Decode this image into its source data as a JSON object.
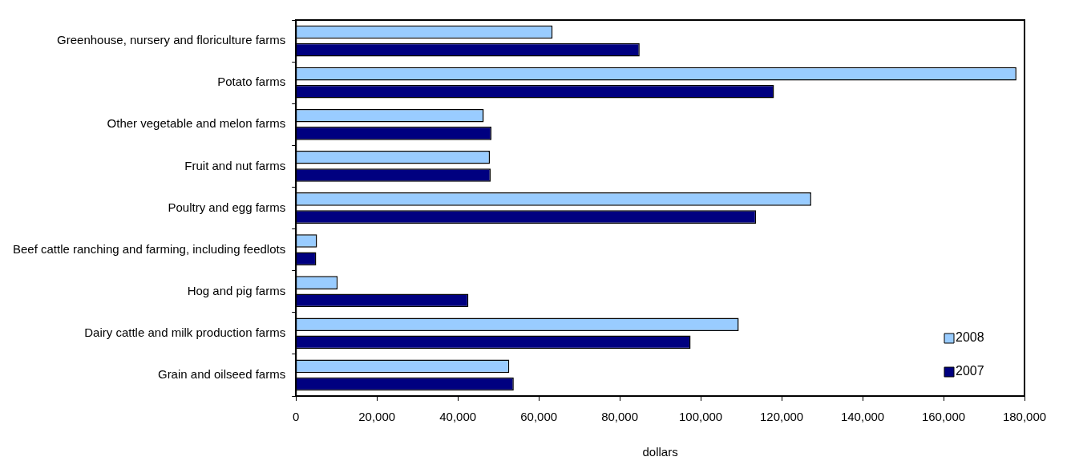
{
  "chart_data": {
    "type": "bar",
    "orientation": "horizontal",
    "xlabel": "dollars",
    "categories": [
      "Greenhouse, nursery and floriculture farms",
      "Potato farms",
      "Other vegetable and melon farms",
      "Fruit and nut farms",
      "Poultry and egg farms",
      "Beef cattle ranching and farming, including feedlots",
      "Hog and pig farms",
      "Dairy cattle and milk production farms",
      "Grain and oilseed farms"
    ],
    "series": [
      {
        "name": "2008",
        "color": "#99ccff",
        "values": [
          63400,
          178000,
          46400,
          47900,
          127300,
          5200,
          10300,
          109400,
          52700
        ]
      },
      {
        "name": "2007",
        "color": "#000080",
        "values": [
          84900,
          118100,
          48300,
          48100,
          113700,
          5000,
          42600,
          97500,
          53800
        ]
      }
    ],
    "xlim": [
      0,
      180000
    ],
    "xticks": [
      {
        "value": 0,
        "label": "0"
      },
      {
        "value": 20000,
        "label": "20,000"
      },
      {
        "value": 40000,
        "label": "40,000"
      },
      {
        "value": 60000,
        "label": "60,000"
      },
      {
        "value": 80000,
        "label": "80,000"
      },
      {
        "value": 100000,
        "label": "100,000"
      },
      {
        "value": 120000,
        "label": "120,000"
      },
      {
        "value": 140000,
        "label": "140,000"
      },
      {
        "value": 160000,
        "label": "160,000"
      },
      {
        "value": 180000,
        "label": "180,000"
      }
    ],
    "grid": false,
    "legend": "bottom right"
  }
}
